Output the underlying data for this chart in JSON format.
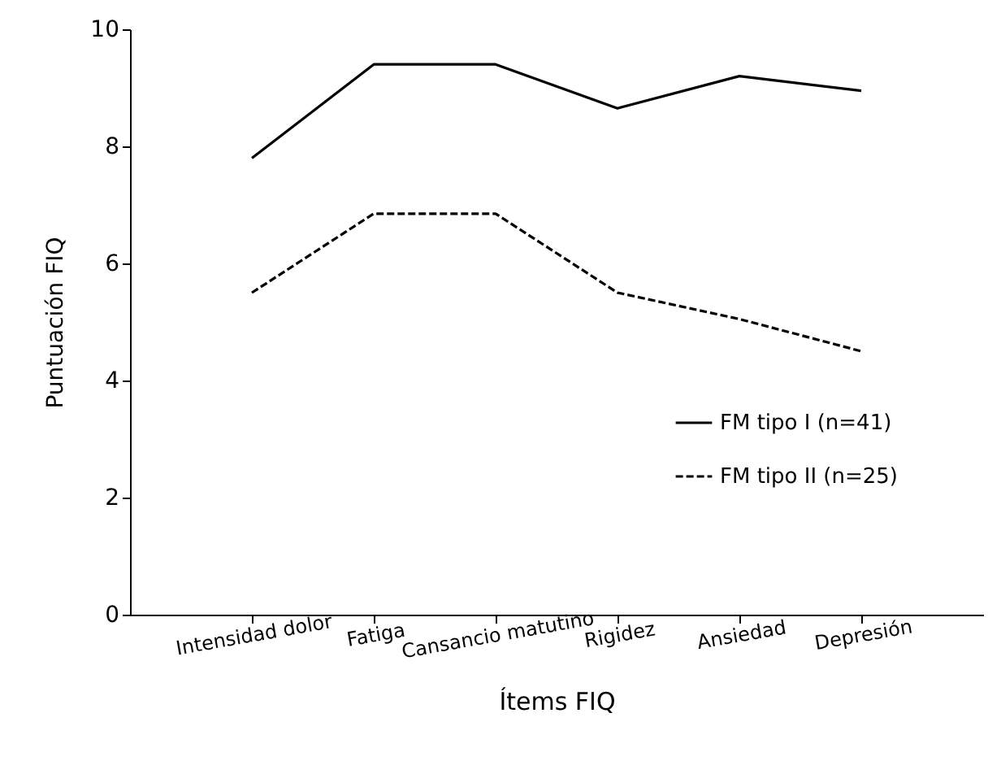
{
  "chart_data": {
    "type": "line",
    "xlabel": "Ítems FIQ",
    "ylabel": "Puntuación FIQ",
    "categories": [
      "Intensidad dolor",
      "Fatiga",
      "Cansancio matutino",
      "Rigidez",
      "Ansiedad",
      "Depresión"
    ],
    "series": [
      {
        "name": "FM tipo I (n=41)",
        "color": "#000000",
        "line_style": "solid",
        "values": [
          7.8,
          9.4,
          9.4,
          8.65,
          9.2,
          8.95
        ]
      },
      {
        "name": "FM tipo II (n=25)",
        "color": "#000000",
        "line_style": "dashed",
        "values": [
          5.5,
          6.85,
          6.85,
          5.5,
          5.05,
          4.5
        ]
      }
    ],
    "ylim": [
      0,
      10
    ],
    "yticks": [
      0,
      2,
      4,
      6,
      8,
      10
    ],
    "grid": false,
    "legend": "bottom right",
    "marker": "none"
  }
}
